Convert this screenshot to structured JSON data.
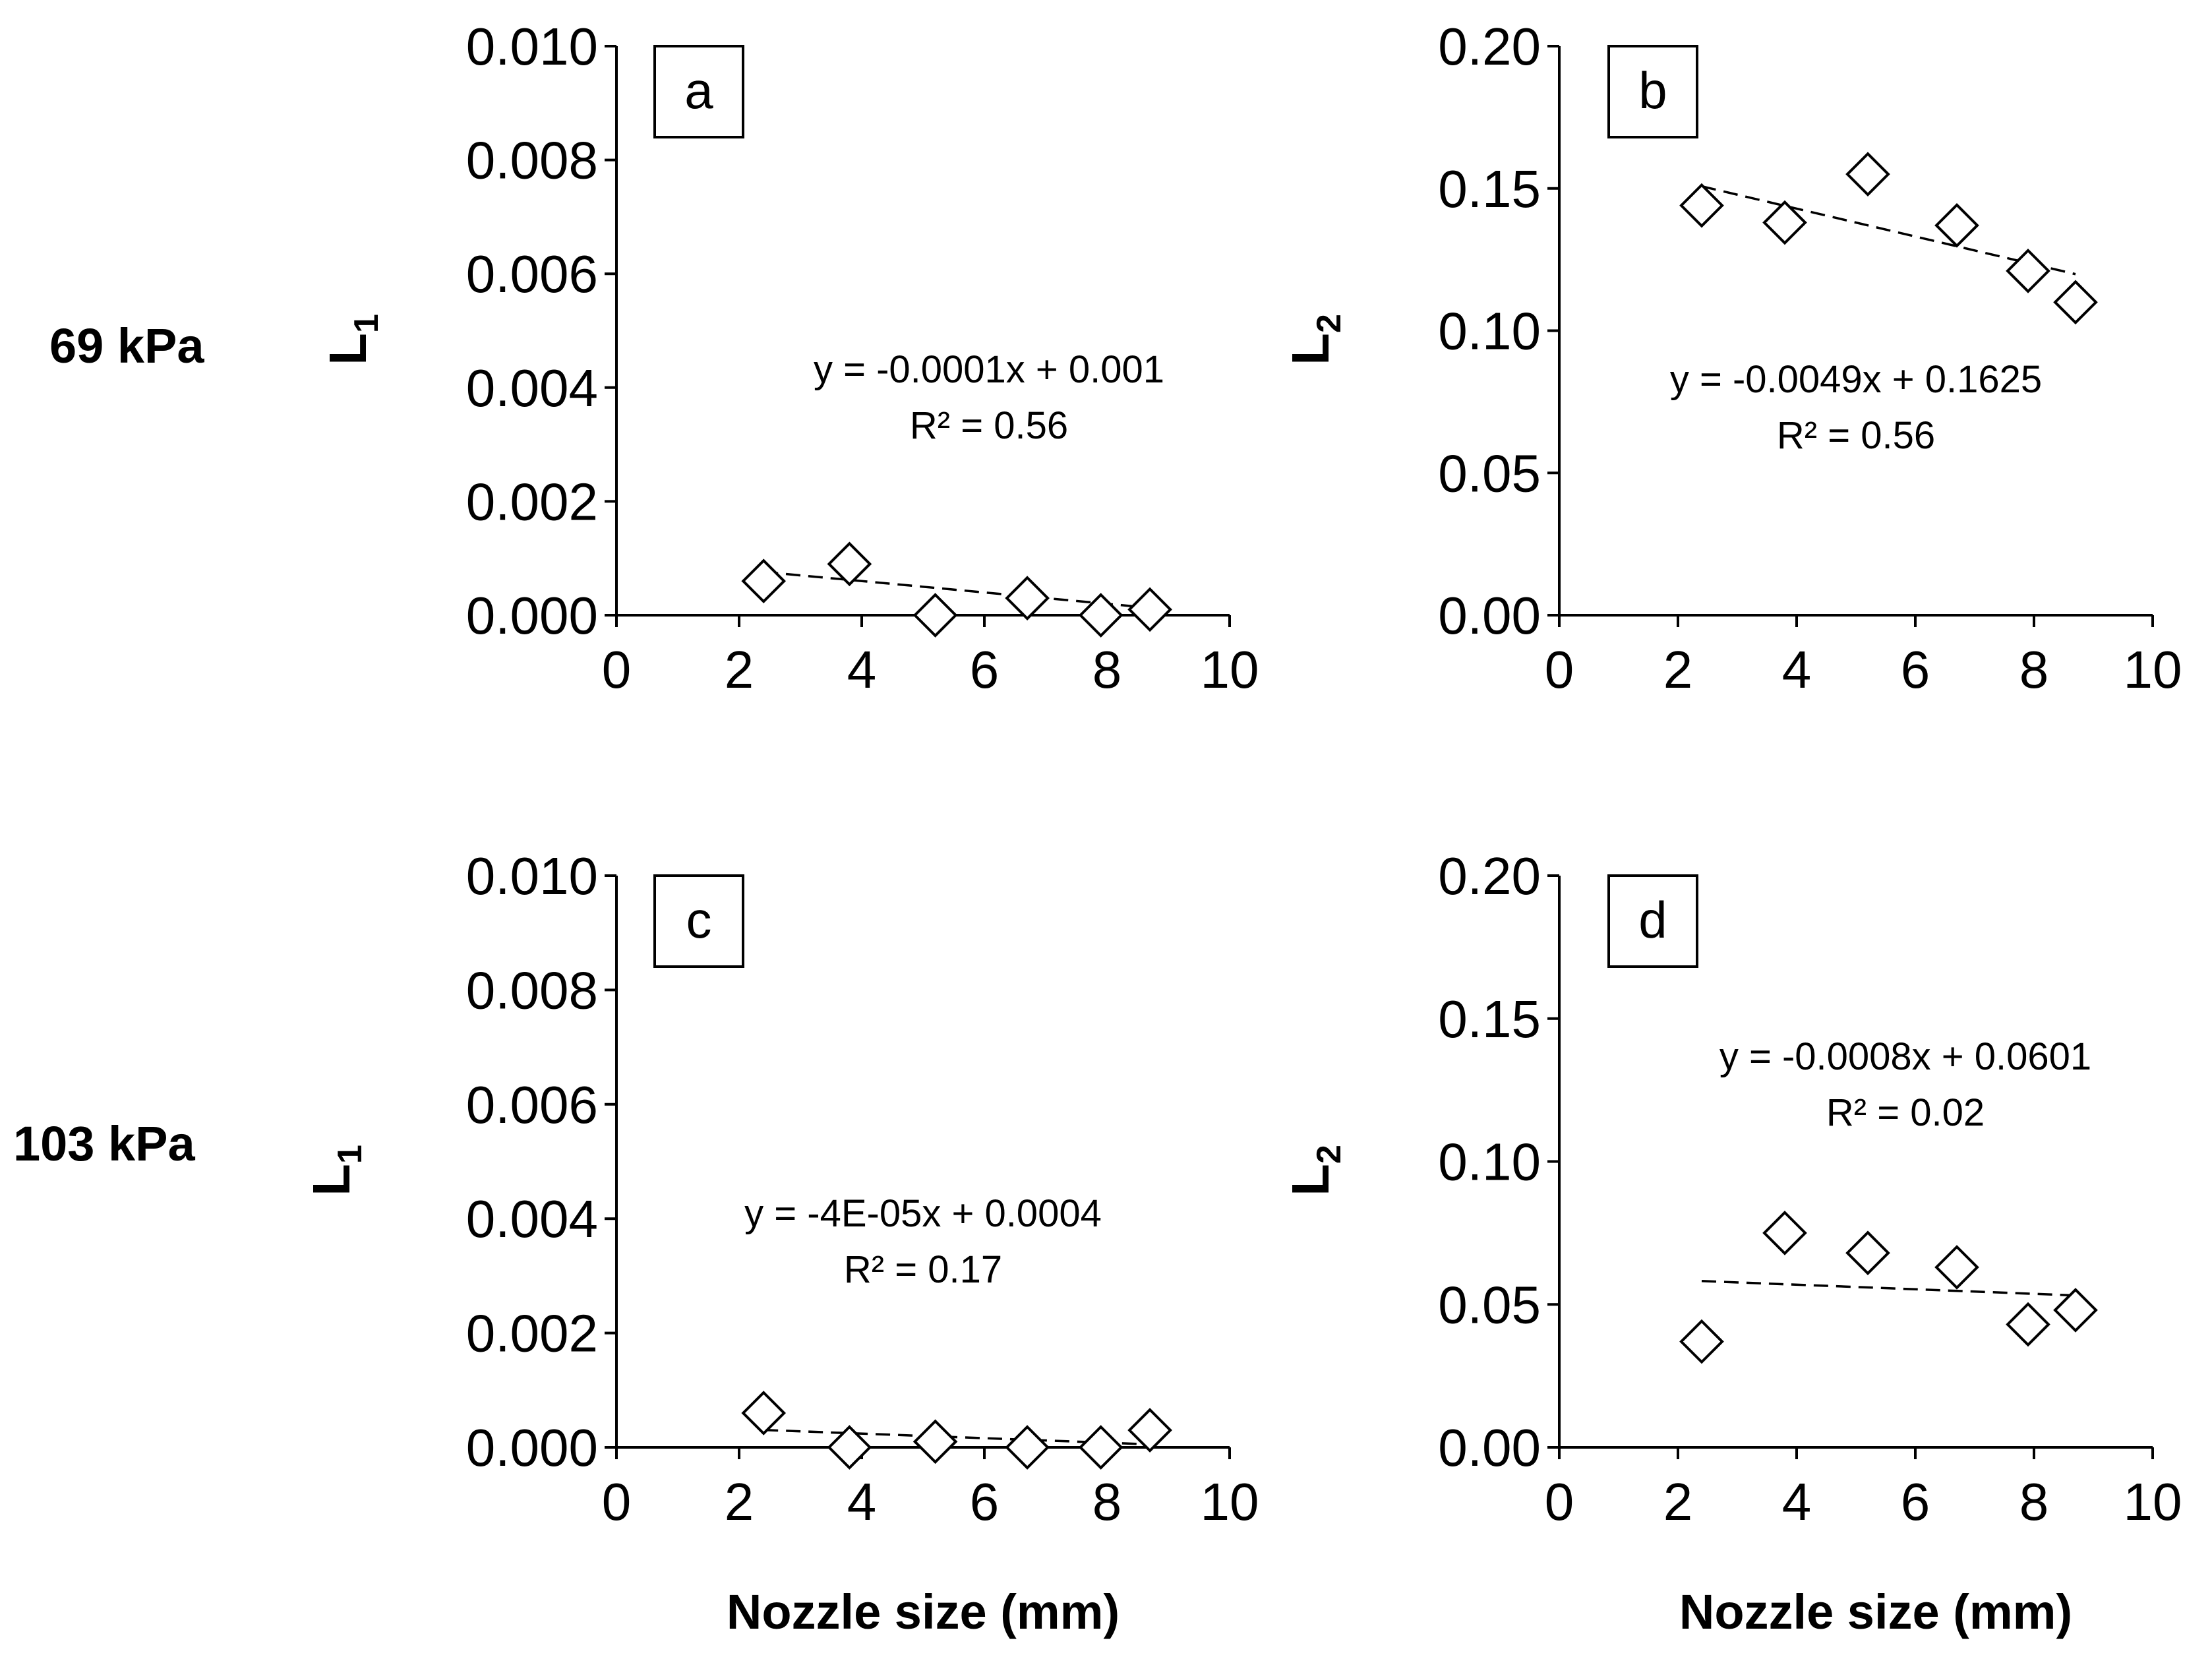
{
  "figure": {
    "row_labels": [
      "69 kPa",
      "103 kPa"
    ],
    "xlabel": "Nozzle size (mm)"
  },
  "chart_data": [
    {
      "type": "scatter",
      "panel": "a",
      "row": "69 kPa",
      "ylabel": "L",
      "ylabel_sub": "1",
      "xlim": [
        0,
        10
      ],
      "xticks": [
        "0",
        "2",
        "4",
        "6",
        "8",
        "10"
      ],
      "ylim": [
        0,
        0.01
      ],
      "yticks": [
        "0.000",
        "0.002",
        "0.004",
        "0.006",
        "0.008",
        "0.010"
      ],
      "x": [
        2.4,
        3.8,
        5.2,
        6.7,
        7.9,
        8.7
      ],
      "y": [
        0.0006,
        0.0009,
        0.0,
        0.0003,
        0.0,
        0.0001
      ],
      "trendline": {
        "slope": -0.0001,
        "intercept": 0.001,
        "x_range": [
          2.4,
          8.7
        ]
      },
      "equation": "y = -0.0001x + 0.001",
      "r2": "R² = 0.56"
    },
    {
      "type": "scatter",
      "panel": "b",
      "row": "69 kPa",
      "ylabel": "L",
      "ylabel_sub": "2",
      "xlim": [
        0,
        10
      ],
      "xticks": [
        "0",
        "2",
        "4",
        "6",
        "8",
        "10"
      ],
      "ylim": [
        0,
        0.2
      ],
      "yticks": [
        "0.00",
        "0.05",
        "0.10",
        "0.15",
        "0.20"
      ],
      "x": [
        2.4,
        3.8,
        5.2,
        6.7,
        7.9,
        8.7
      ],
      "y": [
        0.144,
        0.138,
        0.155,
        0.137,
        0.121,
        0.11
      ],
      "trendline": {
        "slope": -0.0049,
        "intercept": 0.1625,
        "x_range": [
          2.4,
          8.7
        ]
      },
      "equation": "y = -0.0049x + 0.1625",
      "r2": "R² = 0.56"
    },
    {
      "type": "scatter",
      "panel": "c",
      "row": "103 kPa",
      "ylabel": "L",
      "ylabel_sub": "1",
      "xlim": [
        0,
        10
      ],
      "xticks": [
        "0",
        "2",
        "4",
        "6",
        "8",
        "10"
      ],
      "ylim": [
        0,
        0.01
      ],
      "yticks": [
        "0.000",
        "0.002",
        "0.004",
        "0.006",
        "0.008",
        "0.010"
      ],
      "x": [
        2.4,
        3.8,
        5.2,
        6.7,
        7.9,
        8.7
      ],
      "y": [
        0.0006,
        0.0,
        0.0001,
        0.0,
        0.0,
        0.0003
      ],
      "trendline": {
        "slope": -4e-05,
        "intercept": 0.0004,
        "x_range": [
          2.4,
          8.7
        ]
      },
      "equation": "y = -4E-05x + 0.0004",
      "r2": "R² = 0.17"
    },
    {
      "type": "scatter",
      "panel": "d",
      "row": "103 kPa",
      "ylabel": "L",
      "ylabel_sub": "2",
      "xlim": [
        0,
        10
      ],
      "xticks": [
        "0",
        "2",
        "4",
        "6",
        "8",
        "10"
      ],
      "ylim": [
        0,
        0.2
      ],
      "yticks": [
        "0.00",
        "0.05",
        "0.10",
        "0.15",
        "0.20"
      ],
      "x": [
        2.4,
        3.8,
        5.2,
        6.7,
        7.9,
        8.7
      ],
      "y": [
        0.037,
        0.075,
        0.068,
        0.063,
        0.043,
        0.048
      ],
      "trendline": {
        "slope": -0.0008,
        "intercept": 0.0601,
        "x_range": [
          2.4,
          8.7
        ]
      },
      "equation": "y = -0.0008x + 0.0601",
      "r2": "R² = 0.02"
    }
  ]
}
